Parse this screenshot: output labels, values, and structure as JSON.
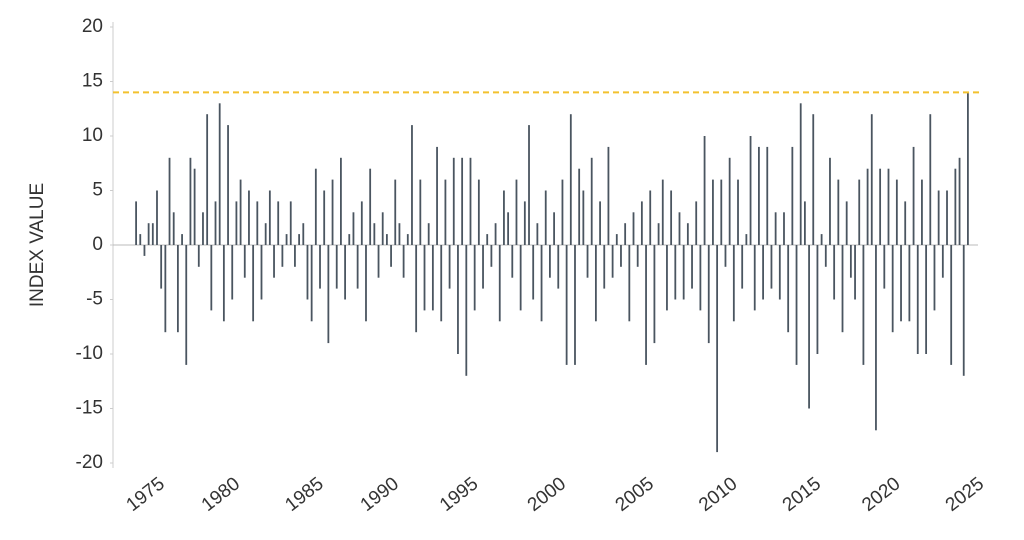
{
  "chart_data": {
    "type": "bar",
    "y_label": "INDEX VALUE",
    "categories": [
      null,
      null,
      null,
      "1975",
      null,
      null,
      null,
      null,
      null,
      null,
      null,
      null,
      null,
      null,
      null,
      null,
      null,
      null,
      null,
      null,
      null,
      "1980",
      null,
      null,
      null,
      null,
      null,
      null,
      null,
      null,
      null,
      null,
      null,
      null,
      null,
      null,
      null,
      null,
      null,
      null,
      null,
      "1985",
      null,
      null,
      null,
      null,
      null,
      null,
      null,
      null,
      null,
      null,
      null,
      null,
      null,
      null,
      null,
      null,
      null,
      "1990",
      null,
      null,
      null,
      null,
      null,
      null,
      null,
      null,
      null,
      null,
      null,
      null,
      null,
      null,
      null,
      null,
      null,
      null,
      "1995",
      null,
      null,
      null,
      null,
      null,
      null,
      null,
      null,
      null,
      null,
      null,
      null,
      null,
      null,
      null,
      null,
      null,
      null,
      null,
      null,
      "2000",
      null,
      null,
      null,
      null,
      null,
      null,
      null,
      null,
      null,
      null,
      null,
      null,
      null,
      null,
      null,
      null,
      null,
      null,
      null,
      null,
      "2005",
      null,
      null,
      null,
      null,
      null,
      null,
      null,
      null,
      null,
      null,
      null,
      null,
      null,
      null,
      null,
      null,
      null,
      null,
      null,
      "2010",
      null,
      null,
      null,
      null,
      null,
      null,
      null,
      null,
      null,
      null,
      null,
      null,
      null,
      null,
      null,
      null,
      null,
      null,
      null,
      "2015",
      null,
      null,
      null,
      null,
      null,
      null,
      null,
      null,
      null,
      null,
      null,
      null,
      null,
      null,
      null,
      null,
      null,
      null,
      "2020",
      null,
      null,
      null,
      null,
      null,
      null,
      null,
      null,
      null,
      null,
      null,
      null,
      null,
      null,
      null,
      null,
      null,
      null,
      null,
      "2025"
    ],
    "values": [
      4,
      1,
      -1,
      2,
      2,
      5,
      -4,
      -8,
      8,
      3,
      -8,
      1,
      -11,
      8,
      7,
      -2,
      3,
      12,
      -6,
      4,
      13,
      -7,
      11,
      -5,
      4,
      6,
      -3,
      5,
      -7,
      4,
      -5,
      2,
      5,
      -3,
      4,
      -2,
      1,
      4,
      -2,
      1,
      2,
      -5,
      -7,
      7,
      -4,
      5,
      -9,
      6,
      -4,
      8,
      -5,
      1,
      3,
      -4,
      4,
      -7,
      7,
      2,
      -3,
      3,
      1,
      -2,
      6,
      2,
      -3,
      1,
      11,
      -8,
      6,
      -6,
      2,
      -6,
      9,
      -7,
      6,
      -4,
      8,
      -10,
      8,
      -12,
      8,
      -6,
      6,
      -4,
      1,
      -2,
      2,
      -7,
      5,
      3,
      -3,
      6,
      -6,
      4,
      11,
      -5,
      2,
      -7,
      5,
      -3,
      3,
      -4,
      6,
      -11,
      12,
      -11,
      7,
      5,
      -3,
      8,
      -7,
      4,
      -4,
      9,
      -3,
      1,
      -2,
      2,
      -7,
      3,
      -2,
      4,
      -11,
      5,
      -9,
      2,
      6,
      -6,
      5,
      -5,
      3,
      -5,
      2,
      -4,
      4,
      -6,
      10,
      -9,
      6,
      -19,
      6,
      -2,
      8,
      -7,
      6,
      -4,
      1,
      10,
      -6,
      9,
      -5,
      9,
      -4,
      3,
      -5,
      3,
      -8,
      9,
      -11,
      13,
      4,
      -15,
      12,
      -10,
      1,
      -2,
      8,
      -5,
      6,
      -8,
      4,
      -3,
      -5,
      6,
      -11,
      7,
      12,
      -17,
      7,
      -4,
      7,
      -8,
      6,
      -7,
      4,
      -7,
      9,
      -10,
      6,
      -10,
      12,
      -6,
      5,
      -3,
      5,
      -11,
      7,
      8,
      -12,
      14
    ],
    "color": "#4a5560",
    "reference_line": {
      "value": 14,
      "color": "#f2c12e"
    },
    "ylim": [
      -20,
      20
    ],
    "yticks": [
      -20,
      -15,
      -10,
      -5,
      0,
      5,
      10,
      15,
      20
    ]
  }
}
